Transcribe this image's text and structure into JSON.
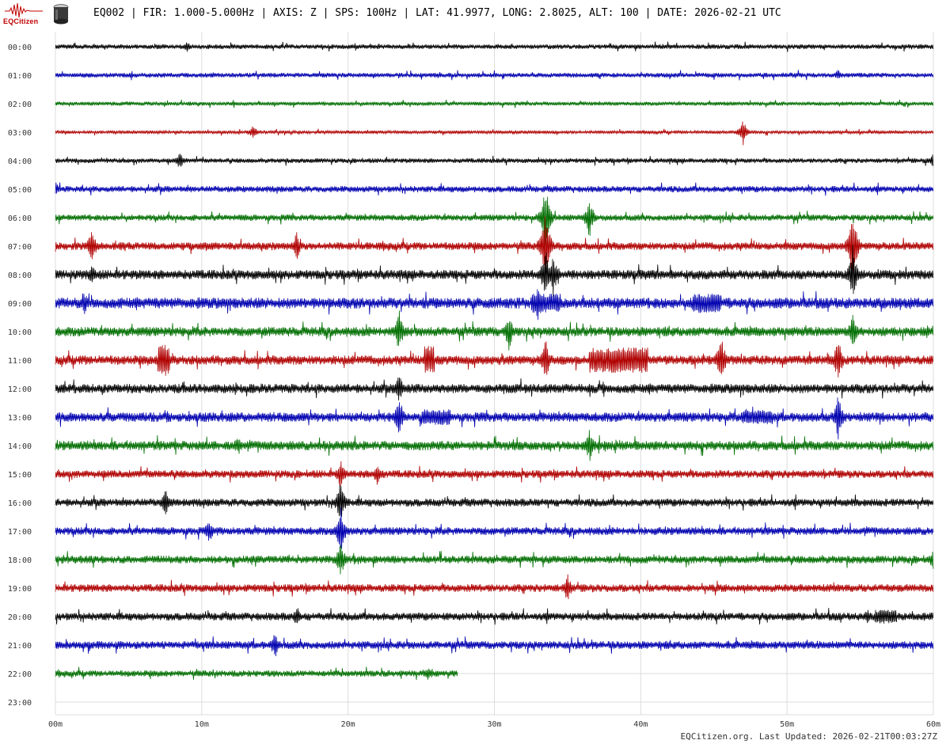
{
  "logo": {
    "text": "EQCitizen",
    "color": "#c00000"
  },
  "header": {
    "title": "EQ002 | FIR: 1.000-5.000Hz | AXIS: Z | SPS: 100Hz | LAT: 41.9977, LONG: 2.8025, ALT: 100 | DATE: 2026-02-21 UTC"
  },
  "footer": {
    "text": "EQCitizen.org. Last Updated: 2026-02-21T00:03:27Z"
  },
  "chart_data": {
    "type": "line",
    "title": "",
    "xlabel": "",
    "ylabel": "",
    "grid": true,
    "xlim": [
      0,
      60
    ],
    "x_ticks": [
      "00m",
      "10m",
      "20m",
      "30m",
      "40m",
      "50m",
      "60m"
    ],
    "x_tick_values": [
      0,
      10,
      20,
      30,
      40,
      50,
      60
    ],
    "series_colors": [
      "#000000",
      "#0000b0",
      "#006e00",
      "#b00000"
    ],
    "rows": [
      "00:00",
      "01:00",
      "02:00",
      "03:00",
      "04:00",
      "05:00",
      "06:00",
      "07:00",
      "08:00",
      "09:00",
      "10:00",
      "11:00",
      "12:00",
      "13:00",
      "14:00",
      "15:00",
      "16:00",
      "17:00",
      "18:00",
      "19:00",
      "20:00",
      "21:00",
      "22:00",
      "23:00"
    ],
    "row_end_minutes": [
      60,
      60,
      60,
      60,
      60,
      60,
      60,
      60,
      60,
      60,
      60,
      60,
      60,
      60,
      60,
      60,
      60,
      60,
      60,
      60,
      60,
      60,
      27.5,
      0
    ],
    "row_base_amplitude": [
      3,
      3,
      2.5,
      2,
      3,
      4,
      4,
      5,
      6,
      7,
      6,
      6,
      6,
      6,
      6,
      5,
      5,
      5,
      5,
      5,
      5,
      5,
      4,
      0
    ],
    "events": [
      {
        "row": 0,
        "minute": 9,
        "amp": 7
      },
      {
        "row": 1,
        "minute": 53.5,
        "amp": 8
      },
      {
        "row": 3,
        "minute": 47,
        "amp": 18
      },
      {
        "row": 3,
        "minute": 13.5,
        "amp": 10
      },
      {
        "row": 4,
        "minute": 8.5,
        "amp": 12
      },
      {
        "row": 4,
        "minute": 60,
        "amp": 10
      },
      {
        "row": 5,
        "minute": 0,
        "amp": 10
      },
      {
        "row": 6,
        "minute": 33.5,
        "amp": 45
      },
      {
        "row": 6,
        "minute": 36.5,
        "amp": 28
      },
      {
        "row": 7,
        "minute": 2.5,
        "amp": 25
      },
      {
        "row": 7,
        "minute": 16.5,
        "amp": 20
      },
      {
        "row": 7,
        "minute": 33.5,
        "amp": 50
      },
      {
        "row": 7,
        "minute": 54.5,
        "amp": 50
      },
      {
        "row": 8,
        "minute": 2.5,
        "amp": 15
      },
      {
        "row": 8,
        "minute": 33.5,
        "amp": 35
      },
      {
        "row": 8,
        "minute": 34,
        "amp": 30
      },
      {
        "row": 8,
        "minute": 54.5,
        "amp": 40
      },
      {
        "row": 9,
        "minute": 2,
        "amp": 15
      },
      {
        "row": 9,
        "minute": 33,
        "amp": 25
      },
      {
        "row": 9,
        "minute": 44,
        "amp": 18
      },
      {
        "row": 10,
        "minute": 23.5,
        "amp": 30
      },
      {
        "row": 10,
        "minute": 31,
        "amp": 25
      },
      {
        "row": 10,
        "minute": 54.5,
        "amp": 25
      },
      {
        "row": 11,
        "minute": 7.5,
        "amp": 22
      },
      {
        "row": 11,
        "minute": 25.5,
        "amp": 20
      },
      {
        "row": 11,
        "minute": 33.5,
        "amp": 30
      },
      {
        "row": 11,
        "minute": 45.5,
        "amp": 35
      },
      {
        "row": 11,
        "minute": 53.5,
        "amp": 30
      },
      {
        "row": 12,
        "minute": 23.5,
        "amp": 20
      },
      {
        "row": 13,
        "minute": 23.5,
        "amp": 30
      },
      {
        "row": 13,
        "minute": 53.5,
        "amp": 30
      },
      {
        "row": 14,
        "minute": 36.5,
        "amp": 22
      },
      {
        "row": 14,
        "minute": 12.5,
        "amp": 15
      },
      {
        "row": 15,
        "minute": 19.5,
        "amp": 20
      },
      {
        "row": 15,
        "minute": 22,
        "amp": 15
      },
      {
        "row": 16,
        "minute": 7.5,
        "amp": 20
      },
      {
        "row": 16,
        "minute": 19.5,
        "amp": 30
      },
      {
        "row": 17,
        "minute": 19.5,
        "amp": 35
      },
      {
        "row": 17,
        "minute": 10.5,
        "amp": 18
      },
      {
        "row": 18,
        "minute": 19.5,
        "amp": 25
      },
      {
        "row": 18,
        "minute": 60,
        "amp": 15
      },
      {
        "row": 19,
        "minute": 35,
        "amp": 20
      },
      {
        "row": 20,
        "minute": 16.5,
        "amp": 15
      },
      {
        "row": 20,
        "minute": 55.5,
        "amp": 12
      },
      {
        "row": 21,
        "minute": 15,
        "amp": 18
      },
      {
        "row": 22,
        "minute": 25.5,
        "amp": 10
      }
    ],
    "bursts": [
      {
        "row": 9,
        "start": 32.5,
        "end": 34.5,
        "amp": 12
      },
      {
        "row": 9,
        "start": 43.5,
        "end": 45.5,
        "amp": 12
      },
      {
        "row": 11,
        "start": 36.5,
        "end": 40.5,
        "amp": 16
      },
      {
        "row": 11,
        "start": 7,
        "end": 7.8,
        "amp": 20
      },
      {
        "row": 11,
        "start": 25.2,
        "end": 25.9,
        "amp": 18
      },
      {
        "row": 13,
        "start": 25,
        "end": 27,
        "amp": 10
      },
      {
        "row": 13,
        "start": 47,
        "end": 49,
        "amp": 9
      },
      {
        "row": 20,
        "start": 56,
        "end": 57.5,
        "amp": 9
      }
    ]
  }
}
